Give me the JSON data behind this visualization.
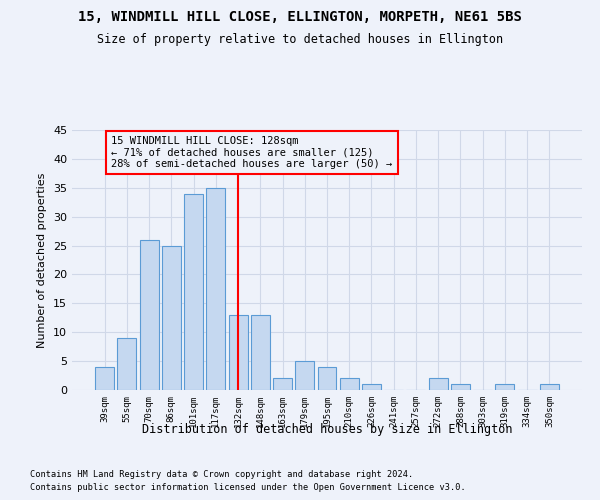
{
  "title1": "15, WINDMILL HILL CLOSE, ELLINGTON, MORPETH, NE61 5BS",
  "title2": "Size of property relative to detached houses in Ellington",
  "xlabel": "Distribution of detached houses by size in Ellington",
  "ylabel": "Number of detached properties",
  "categories": [
    "39sqm",
    "55sqm",
    "70sqm",
    "86sqm",
    "101sqm",
    "117sqm",
    "132sqm",
    "148sqm",
    "163sqm",
    "179sqm",
    "195sqm",
    "210sqm",
    "226sqm",
    "241sqm",
    "257sqm",
    "272sqm",
    "288sqm",
    "303sqm",
    "319sqm",
    "334sqm",
    "350sqm"
  ],
  "values": [
    4,
    9,
    26,
    25,
    34,
    35,
    13,
    13,
    2,
    5,
    4,
    2,
    1,
    0,
    0,
    2,
    1,
    0,
    1,
    0,
    1
  ],
  "bar_color": "#c5d8f0",
  "bar_edge_color": "#5b9bd5",
  "red_line_x": 6.0,
  "annotation_lines": [
    "15 WINDMILL HILL CLOSE: 128sqm",
    "← 71% of detached houses are smaller (125)",
    "28% of semi-detached houses are larger (50) →"
  ],
  "ylim": [
    0,
    45
  ],
  "yticks": [
    0,
    5,
    10,
    15,
    20,
    25,
    30,
    35,
    40,
    45
  ],
  "grid_color": "#d0d8e8",
  "footnote1": "Contains HM Land Registry data © Crown copyright and database right 2024.",
  "footnote2": "Contains public sector information licensed under the Open Government Licence v3.0.",
  "bg_color": "#eef2fa"
}
